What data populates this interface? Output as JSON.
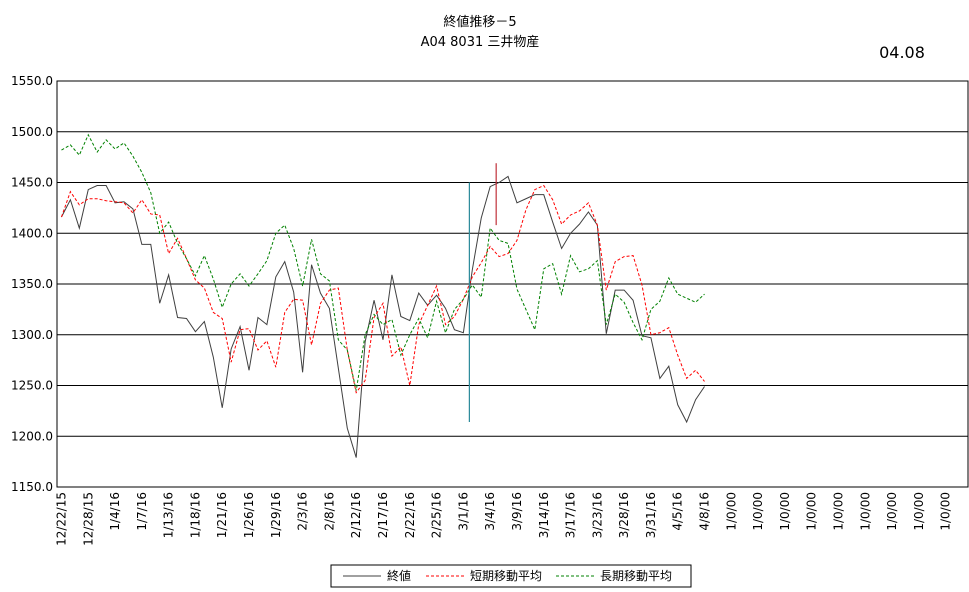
{
  "chart_data": {
    "type": "line",
    "title": "終値推移－5",
    "subtitle": "A04 8031 三井物産",
    "date_note": "04.08",
    "categories": [
      "12/22/15",
      null,
      null,
      "12/28/15",
      null,
      null,
      "1/4/16",
      null,
      null,
      "1/7/16",
      null,
      null,
      "1/13/16",
      null,
      null,
      "1/18/16",
      null,
      null,
      "1/21/16",
      null,
      null,
      "1/26/16",
      null,
      null,
      "1/29/16",
      null,
      null,
      "2/3/16",
      null,
      null,
      "2/8/16",
      null,
      null,
      "2/12/16",
      null,
      null,
      "2/17/16",
      null,
      null,
      "2/22/16",
      null,
      null,
      "2/25/16",
      null,
      null,
      "3/1/16",
      null,
      null,
      "3/4/16",
      null,
      null,
      "3/9/16",
      null,
      null,
      "3/14/16",
      null,
      null,
      "3/17/16",
      null,
      null,
      "3/23/16",
      null,
      null,
      "3/28/16",
      null,
      null,
      "3/31/16",
      null,
      null,
      "4/5/16",
      null,
      null,
      "4/8/16",
      null,
      null,
      "1/0/00",
      null,
      null,
      "1/0/00",
      null,
      null,
      "1/0/00",
      null,
      null,
      "1/0/00",
      null,
      null,
      "1/0/00",
      null,
      null,
      "1/0/00",
      null,
      null,
      "1/0/00",
      null,
      null,
      "1/0/00",
      null,
      null,
      "1/0/00",
      null,
      null
    ],
    "series": [
      {
        "name": "終値",
        "color": "#404040",
        "dash": "none",
        "values": [
          1416,
          1433,
          1405,
          1443,
          1447,
          1447,
          1430,
          1431,
          1424,
          1389,
          1389,
          1331,
          1359,
          1317,
          1316,
          1303,
          1313,
          1278,
          1228,
          1286,
          1308,
          1265,
          1317,
          1310,
          1357,
          1372,
          1342,
          1263,
          1369,
          1341,
          1326,
          1267,
          1208,
          1179,
          1293,
          1334,
          1295,
          1359,
          1318,
          1314,
          1341,
          1329,
          1339,
          1326,
          1305,
          1302,
          1364,
          1415,
          1446,
          1450,
          1456,
          1430,
          1434,
          1438,
          1438,
          1411,
          1385,
          1400,
          1409,
          1421,
          1408,
          1301,
          1344,
          1344,
          1334,
          1299,
          1297,
          1257,
          1269,
          1231,
          1214,
          1236,
          1249,
          null,
          null,
          null,
          null,
          null,
          null,
          null,
          null,
          null,
          null,
          null,
          null,
          null,
          null,
          null,
          null,
          null,
          null,
          null,
          null,
          null,
          null,
          null,
          null,
          null,
          null,
          null,
          null,
          null
        ]
      },
      {
        "name": "短期移動平均",
        "color": "#ff0000",
        "dash": "3,2",
        "values": [
          1416,
          1441,
          1428,
          1434,
          1434,
          1432,
          1431,
          1430,
          1420,
          1433,
          1419,
          1418,
          1380,
          1395,
          1375,
          1354,
          1346,
          1322,
          1316,
          1273,
          1305,
          1306,
          1285,
          1294,
          1268,
          1322,
          1335,
          1334,
          1290,
          1331,
          1344,
          1346,
          1285,
          1243,
          1255,
          1317,
          1331,
          1279,
          1288,
          1250,
          1310,
          1329,
          1348,
          1310,
          1318,
          1335,
          1357,
          1371,
          1387,
          1377,
          1380,
          1393,
          1423,
          1443,
          1447,
          1433,
          1409,
          1418,
          1422,
          1430,
          1408,
          1344,
          1372,
          1377,
          1378,
          1349,
          1300,
          1302,
          1307,
          1280,
          1257,
          1265,
          1254,
          null,
          null,
          null,
          null,
          null,
          null,
          null,
          null,
          null,
          null,
          null,
          null,
          null,
          null,
          null,
          null,
          null,
          null,
          null,
          null,
          null,
          null,
          null,
          null,
          null,
          null,
          null,
          null,
          null
        ]
      },
      {
        "name": "長期移動平均",
        "color": "#008000",
        "dash": "3,2",
        "values": [
          1482,
          1487,
          1477,
          1497,
          1480,
          1492,
          1483,
          1489,
          1476,
          1460,
          1440,
          1400,
          1411,
          1390,
          1375,
          1358,
          1378,
          1355,
          1327,
          1350,
          1360,
          1348,
          1360,
          1373,
          1400,
          1408,
          1385,
          1348,
          1394,
          1360,
          1353,
          1295,
          1285,
          1245,
          1300,
          1320,
          1310,
          1315,
          1280,
          1300,
          1316,
          1297,
          1333,
          1302,
          1325,
          1335,
          1349,
          1337,
          1405,
          1393,
          1390,
          1345,
          1325,
          1305,
          1365,
          1370,
          1340,
          1378,
          1362,
          1365,
          1373,
          1310,
          1340,
          1332,
          1312,
          1295,
          1325,
          1333,
          1356,
          1340,
          1336,
          1332,
          1340,
          null,
          null,
          null,
          null,
          null,
          null,
          null,
          null,
          null,
          null,
          null,
          null,
          null,
          null,
          null,
          null,
          null,
          null,
          null,
          null,
          null,
          null,
          null,
          null,
          null,
          null,
          null,
          null,
          null
        ]
      }
    ],
    "vertical_lines": [
      {
        "at": "3/1/16",
        "from": 1450,
        "to": 1214,
        "color": "#2a8a9a"
      },
      {
        "at": "3/4/16",
        "from": 1469,
        "to": 1408,
        "color": "#c0303a"
      }
    ],
    "ylim": [
      1150,
      1550
    ],
    "yticks": [
      {
        "value": 1150,
        "label": "1150.0"
      },
      {
        "value": 1200,
        "label": "1200.0"
      },
      {
        "value": 1250,
        "label": "1250.0"
      },
      {
        "value": 1300,
        "label": "1300.0"
      },
      {
        "value": 1350,
        "label": "1350.0"
      },
      {
        "value": 1400,
        "label": "1400.0"
      },
      {
        "value": 1450,
        "label": "1450.0"
      },
      {
        "value": 1500,
        "label": "1500.0"
      },
      {
        "value": 1550,
        "label": "1550.0"
      }
    ],
    "grid": true,
    "legend": "bottom"
  }
}
